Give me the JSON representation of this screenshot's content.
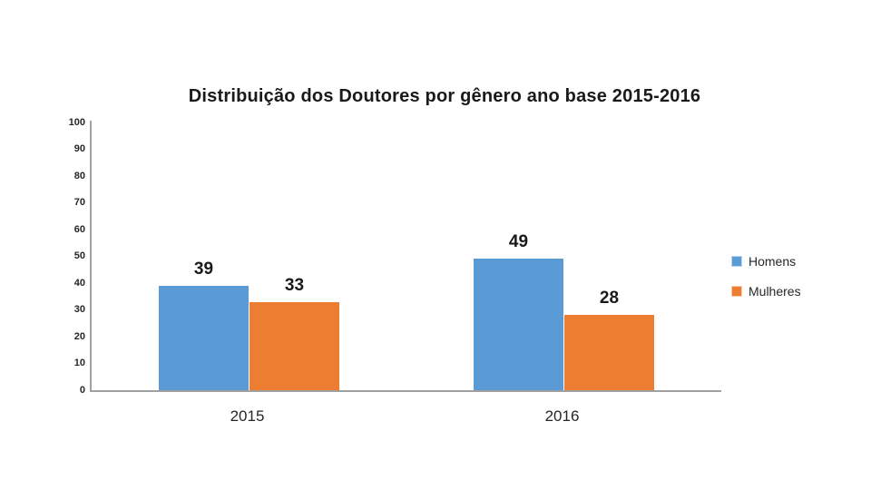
{
  "page": {
    "background_color": "#FFFFFF"
  },
  "chart_data": {
    "type": "bar",
    "title": "Distribuição dos Doutores por gênero ano base 2015-2016",
    "categories": [
      "2015",
      "2016"
    ],
    "series": [
      {
        "name": "Homens",
        "color": "#5B9BD5",
        "values": [
          39,
          49
        ]
      },
      {
        "name": "Mulheres",
        "color": "#ED7D31",
        "values": [
          33,
          28
        ]
      }
    ],
    "xlabel": "",
    "ylabel": "",
    "ylim": [
      0,
      100
    ],
    "y_ticks": [
      0,
      10,
      20,
      30,
      40,
      50,
      60,
      70,
      80,
      90,
      100
    ],
    "grid": false,
    "legend_position": "right",
    "data_labels_shown": true,
    "axis_color": "#A0A0A0",
    "title_color": "#1A1A1A",
    "label_color": "#262626"
  }
}
